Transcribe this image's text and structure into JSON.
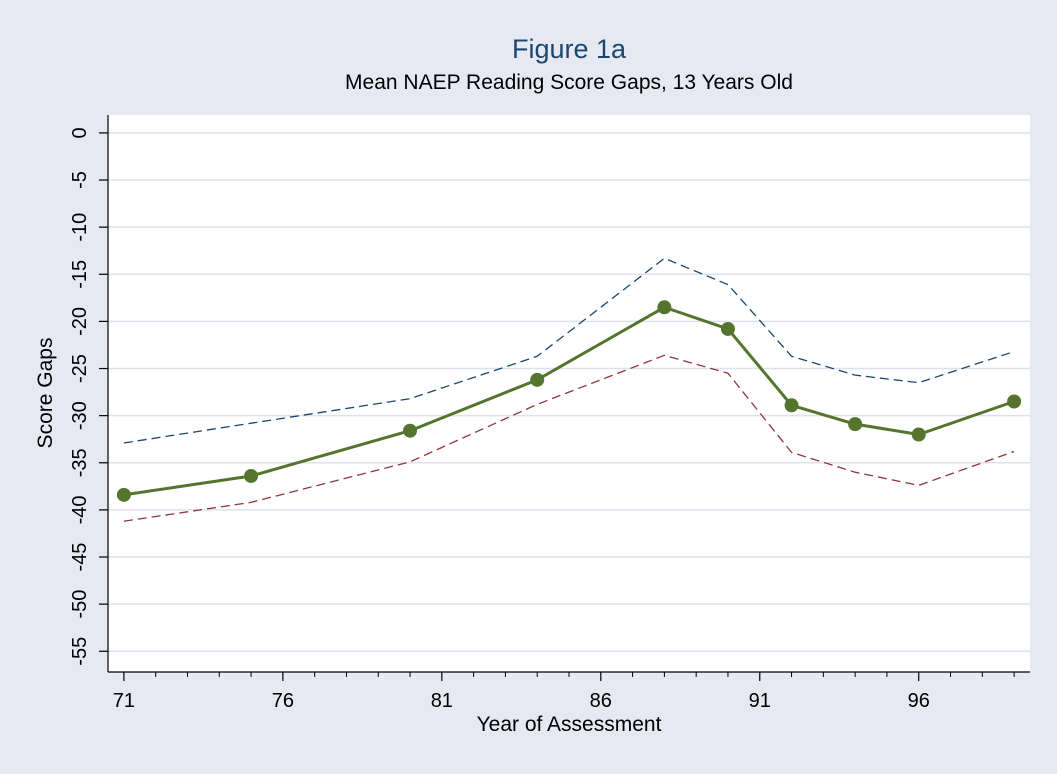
{
  "chart_data": {
    "type": "line",
    "title": "Figure 1a",
    "subtitle": "Mean NAEP Reading Score Gaps, 13 Years Old",
    "x_label": "Year of Assessment",
    "y_label": "Score Gaps",
    "x": [
      71,
      75,
      80,
      84,
      88,
      90,
      92,
      94,
      96,
      99
    ],
    "series": [
      {
        "color": "#1a476f",
        "dashed": true,
        "markers": false,
        "values": [
          -32.9,
          -30.8,
          -28.2,
          -23.7,
          -13.3,
          -16.1,
          -23.7,
          -25.7,
          -26.5,
          -23.2
        ]
      },
      {
        "color": "#90353b",
        "dashed": true,
        "markers": false,
        "values": [
          -41.2,
          -39.2,
          -34.9,
          -28.8,
          -23.6,
          -25.5,
          -33.9,
          -36.0,
          -37.4,
          -33.8
        ]
      },
      {
        "color": "#55752f",
        "dashed": false,
        "markers": true,
        "values": [
          -38.4,
          -36.4,
          -31.6,
          -26.2,
          -18.5,
          -20.8,
          -28.9,
          -30.9,
          -32.0,
          -28.5
        ]
      }
    ],
    "xlim": [
      70.5,
      99.5
    ],
    "ylim": [
      -57.2,
      1.9
    ],
    "xticks": [
      71,
      76,
      81,
      86,
      91,
      96
    ],
    "xminorticks": [
      72,
      73,
      74,
      75,
      77,
      78,
      79,
      80,
      82,
      83,
      84,
      85,
      87,
      88,
      89,
      90,
      92,
      93,
      94,
      95,
      97,
      98,
      99
    ],
    "yticks": [
      0,
      -5,
      -10,
      -15,
      -20,
      -25,
      -30,
      -35,
      -40,
      -45,
      -50,
      -55
    ],
    "grid": true
  }
}
